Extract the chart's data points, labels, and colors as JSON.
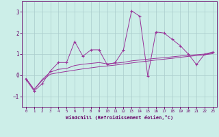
{
  "xlabel": "Windchill (Refroidissement éolien,°C)",
  "background_color": "#cceee8",
  "grid_color": "#aacccc",
  "line_color": "#993399",
  "xlim": [
    -0.5,
    23.5
  ],
  "ylim": [
    -1.5,
    3.5
  ],
  "yticks": [
    -1,
    0,
    1,
    2,
    3
  ],
  "xticks": [
    0,
    1,
    2,
    3,
    4,
    5,
    6,
    7,
    8,
    9,
    10,
    11,
    12,
    13,
    14,
    15,
    16,
    17,
    18,
    19,
    20,
    21,
    22,
    23
  ],
  "line1_x": [
    0,
    1,
    2,
    3,
    4,
    5,
    6,
    7,
    8,
    9,
    10,
    11,
    12,
    13,
    14,
    15,
    16,
    17,
    18,
    19,
    20,
    21,
    22,
    23
  ],
  "line1_y": [
    -0.2,
    -0.75,
    -0.4,
    0.2,
    0.6,
    0.6,
    1.6,
    0.9,
    1.2,
    1.2,
    0.5,
    0.6,
    1.2,
    3.05,
    2.8,
    -0.05,
    2.05,
    2.0,
    1.7,
    1.4,
    1.0,
    0.5,
    1.0,
    1.1
  ],
  "line2_x": [
    0,
    1,
    2,
    3,
    4,
    5,
    6,
    7,
    8,
    9,
    10,
    11,
    12,
    13,
    14,
    15,
    16,
    17,
    18,
    19,
    20,
    21,
    22,
    23
  ],
  "line2_y": [
    -0.15,
    -0.68,
    -0.25,
    0.05,
    0.12,
    0.18,
    0.24,
    0.3,
    0.35,
    0.4,
    0.44,
    0.48,
    0.53,
    0.58,
    0.63,
    0.67,
    0.72,
    0.76,
    0.8,
    0.85,
    0.89,
    0.93,
    0.97,
    1.02
  ],
  "line3_x": [
    0,
    1,
    2,
    3,
    4,
    5,
    6,
    7,
    8,
    9,
    10,
    11,
    12,
    13,
    14,
    15,
    16,
    17,
    18,
    19,
    20,
    21,
    22,
    23
  ],
  "line3_y": [
    -0.15,
    -0.68,
    -0.2,
    0.15,
    0.28,
    0.32,
    0.46,
    0.52,
    0.56,
    0.6,
    0.54,
    0.57,
    0.61,
    0.68,
    0.72,
    0.76,
    0.8,
    0.83,
    0.87,
    0.91,
    0.94,
    0.97,
    1.0,
    1.04
  ]
}
